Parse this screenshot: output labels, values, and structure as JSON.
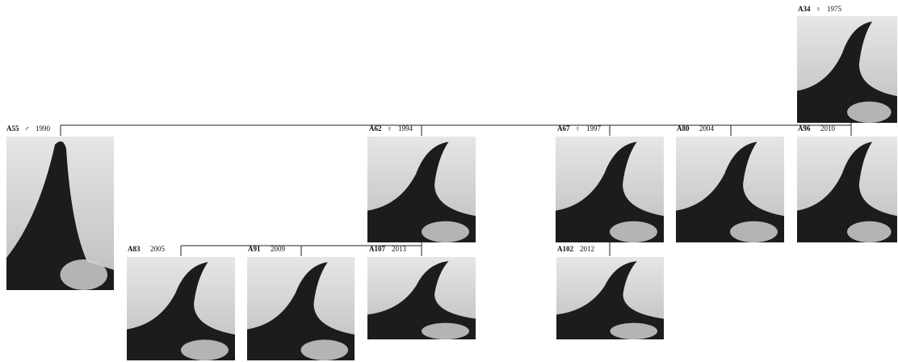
{
  "nodes": [
    {
      "id": "A34",
      "sex": "♀",
      "year": "1975"
    },
    {
      "id": "A55",
      "sex": "♂",
      "year": "1990"
    },
    {
      "id": "A62",
      "sex": "♀",
      "year": "1994"
    },
    {
      "id": "A67",
      "sex": "♀",
      "year": "1997"
    },
    {
      "id": "A80",
      "year": "2004"
    },
    {
      "id": "A96",
      "year": "2010"
    },
    {
      "id": "A83",
      "year": "2005"
    },
    {
      "id": "A91",
      "year": "2009"
    },
    {
      "id": "A107",
      "year": "2013"
    },
    {
      "id": "A102",
      "year": "2012"
    }
  ]
}
